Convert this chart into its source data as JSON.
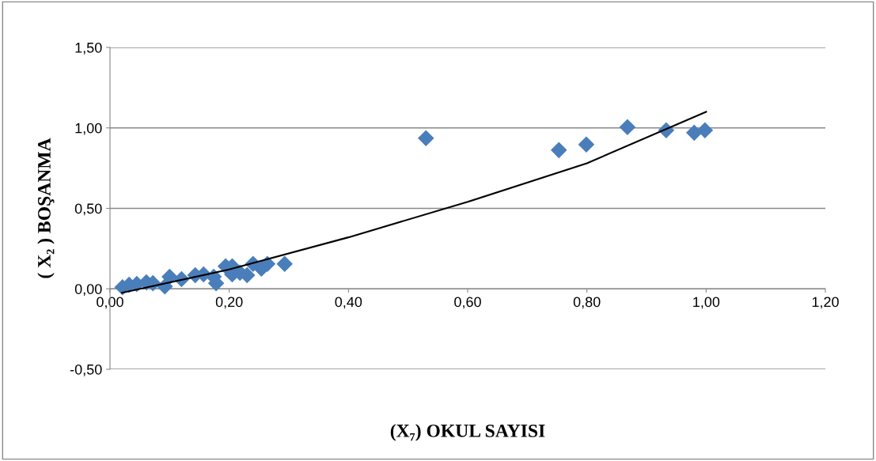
{
  "chart_data": {
    "type": "scatter",
    "xlabel": "(X₇) OKUL SAYISI",
    "ylabel": "( X₂ ) BOŞANMA",
    "grid": "y",
    "xlim": [
      0,
      1.2
    ],
    "xticks": [
      {
        "value": 0,
        "label": "0,00"
      },
      {
        "value": 0.2,
        "label": "0,20"
      },
      {
        "value": 0.4,
        "label": "0,40"
      },
      {
        "value": 0.6,
        "label": "0,60"
      },
      {
        "value": 0.8,
        "label": "0,80"
      },
      {
        "value": 1.0,
        "label": "1,00"
      },
      {
        "value": 1.2,
        "label": "1,20"
      }
    ],
    "ylim": [
      -0.5,
      1.5
    ],
    "yticks": [
      {
        "value": -0.5,
        "label": "-0,50"
      },
      {
        "value": 0,
        "label": "0,00"
      },
      {
        "value": 0.5,
        "label": "0,50"
      },
      {
        "value": 1.0,
        "label": "1,00"
      },
      {
        "value": 1.5,
        "label": "1,50"
      }
    ],
    "series": [
      {
        "marker": "diamond",
        "color": "#4a7ebb",
        "x": [
          0.021,
          0.032,
          0.045,
          0.061,
          0.072,
          0.092,
          0.1,
          0.12,
          0.143,
          0.157,
          0.174,
          0.178,
          0.194,
          0.205,
          0.205,
          0.218,
          0.23,
          0.24,
          0.254,
          0.264,
          0.293,
          0.53,
          0.753,
          0.799,
          0.868,
          0.933,
          0.98,
          0.998
        ],
        "values": [
          0.01,
          0.025,
          0.03,
          0.04,
          0.035,
          0.015,
          0.075,
          0.06,
          0.085,
          0.09,
          0.075,
          0.035,
          0.14,
          0.09,
          0.14,
          0.1,
          0.085,
          0.155,
          0.125,
          0.155,
          0.155,
          0.936,
          0.862,
          0.897,
          1.005,
          0.985,
          0.97,
          0.985
        ]
      },
      {
        "type": "line",
        "color": "#000000",
        "x": [
          0.02,
          0.2,
          0.4,
          0.6,
          0.8,
          1.0
        ],
        "values": [
          -0.025,
          0.12,
          0.32,
          0.54,
          0.78,
          1.1
        ]
      }
    ]
  }
}
